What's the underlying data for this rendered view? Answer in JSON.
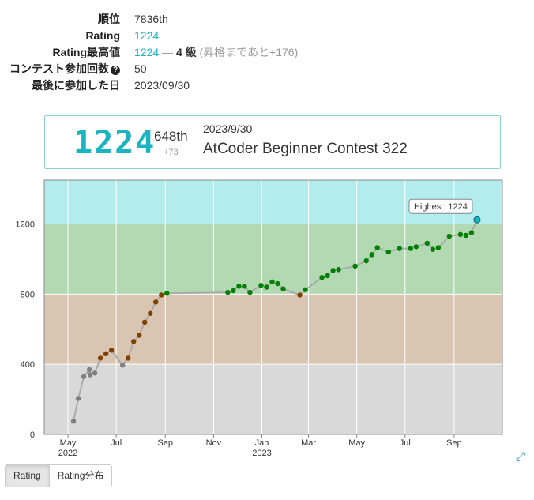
{
  "stats": [
    {
      "label": "順位",
      "value": "7836th"
    },
    {
      "label": "Rating",
      "value": "1224"
    },
    {
      "label": "Rating最高値",
      "value": "1224",
      "dash": "—",
      "kyu": "4 級",
      "note": "(昇格まであと+176)"
    },
    {
      "label": "コンテスト参加回数",
      "value": "50",
      "help_icon": "question-circle-icon"
    },
    {
      "label": "最後に参加した日",
      "value": "2023/09/30"
    }
  ],
  "card": {
    "rating": "1224",
    "place": "648th",
    "diff": "+73",
    "date": "2023/9/30",
    "contest": "AtCoder Beginner Contest 322"
  },
  "buttons": {
    "rating": "Rating",
    "distribution": "Rating分布"
  },
  "colors": {
    "band_gray": "#d9d9d9",
    "band_brown": "#d9c5b2",
    "band_green": "#b2d9b2",
    "band_cyan": "#b2ecec",
    "dot_gray": "#808080",
    "dot_brown": "#804000",
    "dot_green": "#008000",
    "dot_cyan": "#00c0c0",
    "accent": "#1bb4c0"
  },
  "chart_data": {
    "type": "line",
    "ylim": [
      0,
      1450
    ],
    "yticks": [
      0,
      400,
      800,
      1200
    ],
    "x_ticks": [
      {
        "date": "2022-05-01",
        "label": "May",
        "year": "2022"
      },
      {
        "date": "2022-07-01",
        "label": "Jul"
      },
      {
        "date": "2022-09-01",
        "label": "Sep"
      },
      {
        "date": "2022-11-01",
        "label": "Nov"
      },
      {
        "date": "2023-01-01",
        "label": "Jan",
        "year": "2023"
      },
      {
        "date": "2023-03-01",
        "label": "Mar"
      },
      {
        "date": "2023-05-01",
        "label": "May"
      },
      {
        "date": "2023-07-01",
        "label": "Jul"
      },
      {
        "date": "2023-09-01",
        "label": "Sep"
      }
    ],
    "x_range": [
      "2022-04-01",
      "2023-11-01"
    ],
    "bands": [
      {
        "from": 0,
        "to": 400,
        "color": "#d9d9d9"
      },
      {
        "from": 400,
        "to": 800,
        "color": "#d9c5b2"
      },
      {
        "from": 800,
        "to": 1200,
        "color": "#b2d9b2"
      },
      {
        "from": 1200,
        "to": 1450,
        "color": "#b2ecec"
      }
    ],
    "highest_label": "Highest: 1224",
    "series": [
      {
        "points": [
          [
            "2022-05-08",
            75
          ],
          [
            "2022-05-14",
            205
          ],
          [
            "2022-05-21",
            330
          ],
          [
            "2022-05-28",
            370
          ],
          [
            "2022-05-29",
            340
          ],
          [
            "2022-06-04",
            350
          ],
          [
            "2022-06-11",
            435
          ],
          [
            "2022-06-18",
            460
          ],
          [
            "2022-06-25",
            480
          ],
          [
            "2022-07-09",
            395
          ],
          [
            "2022-07-16",
            435
          ],
          [
            "2022-07-23",
            530
          ],
          [
            "2022-07-30",
            565
          ],
          [
            "2022-08-06",
            640
          ],
          [
            "2022-08-13",
            690
          ],
          [
            "2022-08-20",
            755
          ],
          [
            "2022-08-27",
            795
          ],
          [
            "2022-09-03",
            805
          ],
          [
            "2022-11-19",
            810
          ],
          [
            "2022-11-26",
            820
          ],
          [
            "2022-12-03",
            845
          ],
          [
            "2022-12-10",
            845
          ],
          [
            "2022-12-17",
            810
          ],
          [
            "2022-12-31",
            850
          ],
          [
            "2023-01-07",
            840
          ],
          [
            "2023-01-14",
            870
          ],
          [
            "2023-01-21",
            860
          ],
          [
            "2023-01-28",
            830
          ],
          [
            "2023-02-18",
            795
          ],
          [
            "2023-02-25",
            825
          ],
          [
            "2023-03-18",
            895
          ],
          [
            "2023-03-25",
            905
          ],
          [
            "2023-04-01",
            935
          ],
          [
            "2023-04-08",
            940
          ],
          [
            "2023-04-29",
            960
          ],
          [
            "2023-05-13",
            990
          ],
          [
            "2023-05-20",
            1025
          ],
          [
            "2023-05-27",
            1065
          ],
          [
            "2023-06-10",
            1040
          ],
          [
            "2023-06-24",
            1060
          ],
          [
            "2023-07-08",
            1060
          ],
          [
            "2023-07-15",
            1070
          ],
          [
            "2023-07-29",
            1090
          ],
          [
            "2023-08-05",
            1055
          ],
          [
            "2023-08-12",
            1065
          ],
          [
            "2023-08-26",
            1130
          ],
          [
            "2023-09-09",
            1140
          ],
          [
            "2023-09-16",
            1135
          ],
          [
            "2023-09-23",
            1150
          ],
          [
            "2023-09-30",
            1224
          ]
        ]
      }
    ]
  }
}
